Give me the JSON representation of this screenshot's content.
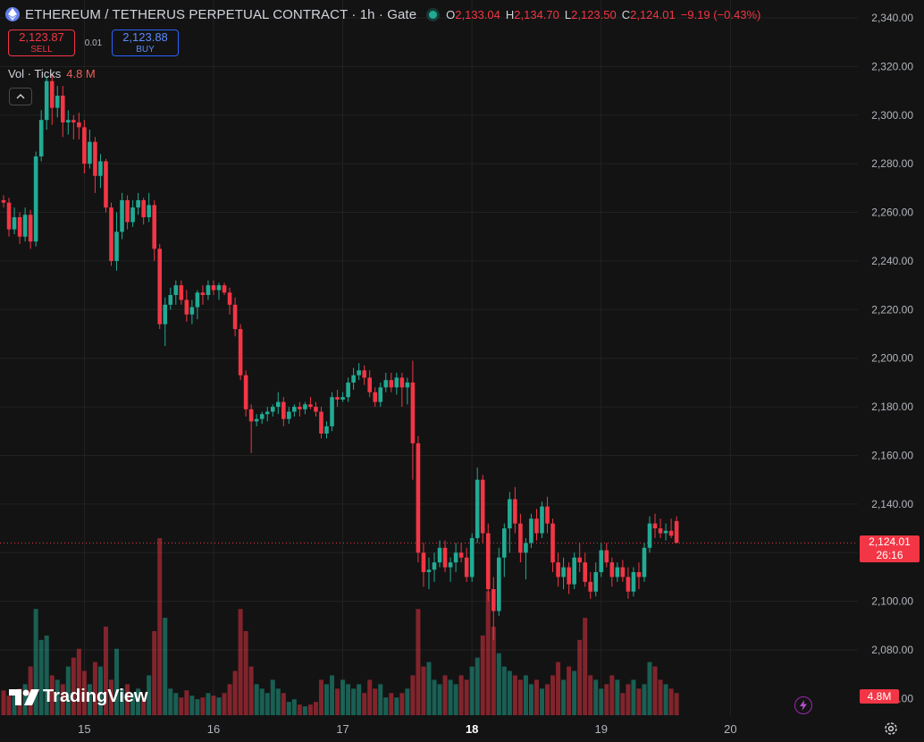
{
  "header": {
    "symbol": "ETHEREUM / TETHERUS PERPETUAL CONTRACT · 1h · Gate",
    "ohlc": [
      {
        "key": "O",
        "value": "2,133.04"
      },
      {
        "key": "H",
        "value": "2,134.70"
      },
      {
        "key": "L",
        "value": "2,123.50"
      },
      {
        "key": "C",
        "value": "2,124.01"
      }
    ],
    "change": "−9.19 (−0.43%)",
    "status_color": "#22ab94"
  },
  "trade": {
    "sell_price": "2,123.87",
    "sell_label": "SELL",
    "spread": "0.01",
    "buy_price": "2,123.88",
    "buy_label": "BUY"
  },
  "volume_legend": {
    "label": "Vol · Ticks",
    "value": "4.8 M"
  },
  "last_price_tag": {
    "price": "2,124.01",
    "countdown": "26:16"
  },
  "volume_tag": "4.8M",
  "branding": {
    "name": "TradingView"
  },
  "icons": {
    "coin": "ethereum-icon",
    "collapse": "chevron-up-icon",
    "bolt": "lightning-icon",
    "settings": "gear-icon"
  },
  "colors": {
    "up": "#22ab94",
    "down": "#f23645",
    "background": "#131313",
    "grid": "#222222"
  },
  "chart_data": {
    "type": "candlestick",
    "interval": "1h",
    "y_ticks": [
      "2,080.00",
      "2,100.00",
      "2,120.00",
      "2,140.00",
      "2,160.00",
      "2,180.00",
      "2,200.00",
      "2,220.00",
      "2,240.00",
      "2,260.00",
      "2,280.00",
      "2,300.00",
      "2,320.00",
      "2,340.00"
    ],
    "y_partial_tick": "2,060.00",
    "ylim": [
      2056,
      2342
    ],
    "x_ticks": [
      {
        "label": "15",
        "bar": 15,
        "bold": false
      },
      {
        "label": "16",
        "bar": 39,
        "bold": false
      },
      {
        "label": "17",
        "bar": 63,
        "bold": false
      },
      {
        "label": "18",
        "bar": 87,
        "bold": true
      },
      {
        "label": "19",
        "bar": 111,
        "bold": false
      },
      {
        "label": "20",
        "bar": 135,
        "bold": false
      }
    ],
    "last_price": 2124.01,
    "candles": [
      [
        2265,
        2267,
        2262,
        2264
      ],
      [
        2264,
        2266,
        2250,
        2253
      ],
      [
        2253,
        2262,
        2251,
        2258
      ],
      [
        2258,
        2260,
        2247,
        2250
      ],
      [
        2250,
        2262,
        2248,
        2259
      ],
      [
        2259,
        2261,
        2245,
        2248
      ],
      [
        2248,
        2285,
        2246,
        2283
      ],
      [
        2283,
        2302,
        2281,
        2298
      ],
      [
        2298,
        2316,
        2294,
        2314
      ],
      [
        2314,
        2317,
        2296,
        2303
      ],
      [
        2303,
        2312,
        2299,
        2308
      ],
      [
        2308,
        2312,
        2291,
        2297
      ],
      [
        2297,
        2302,
        2292,
        2298
      ],
      [
        2298,
        2300,
        2290,
        2297
      ],
      [
        2297,
        2301,
        2290,
        2295
      ],
      [
        2295,
        2298,
        2276,
        2280
      ],
      [
        2280,
        2294,
        2278,
        2289
      ],
      [
        2289,
        2291,
        2268,
        2275
      ],
      [
        2275,
        2284,
        2270,
        2281
      ],
      [
        2281,
        2282,
        2260,
        2262
      ],
      [
        2262,
        2264,
        2238,
        2240
      ],
      [
        2240,
        2260,
        2236,
        2252
      ],
      [
        2252,
        2268,
        2249,
        2265
      ],
      [
        2265,
        2267,
        2253,
        2256
      ],
      [
        2256,
        2265,
        2254,
        2262
      ],
      [
        2262,
        2268,
        2259,
        2265
      ],
      [
        2265,
        2266,
        2255,
        2258
      ],
      [
        2258,
        2268,
        2256,
        2263
      ],
      [
        2263,
        2265,
        2240,
        2245
      ],
      [
        2245,
        2247,
        2212,
        2214
      ],
      [
        2214,
        2225,
        2205,
        2222
      ],
      [
        2222,
        2229,
        2220,
        2226
      ],
      [
        2226,
        2232,
        2222,
        2230
      ],
      [
        2230,
        2232,
        2222,
        2224
      ],
      [
        2224,
        2228,
        2215,
        2218
      ],
      [
        2218,
        2224,
        2214,
        2221
      ],
      [
        2221,
        2228,
        2216,
        2227
      ],
      [
        2227,
        2230,
        2222,
        2226
      ],
      [
        2226,
        2232,
        2224,
        2230
      ],
      [
        2230,
        2232,
        2226,
        2228
      ],
      [
        2228,
        2231,
        2224,
        2230
      ],
      [
        2230,
        2231,
        2226,
        2227
      ],
      [
        2227,
        2229,
        2218,
        2222
      ],
      [
        2222,
        2225,
        2209,
        2212
      ],
      [
        2212,
        2214,
        2191,
        2193
      ],
      [
        2193,
        2195,
        2176,
        2179
      ],
      [
        2179,
        2181,
        2161,
        2174
      ],
      [
        2174,
        2177,
        2172,
        2175
      ],
      [
        2175,
        2178,
        2173,
        2177
      ],
      [
        2177,
        2180,
        2174,
        2178
      ],
      [
        2178,
        2181,
        2176,
        2180
      ],
      [
        2180,
        2186,
        2177,
        2182
      ],
      [
        2182,
        2184,
        2172,
        2175
      ],
      [
        2175,
        2180,
        2173,
        2178
      ],
      [
        2178,
        2181,
        2176,
        2180
      ],
      [
        2180,
        2182,
        2176,
        2179
      ],
      [
        2179,
        2182,
        2177,
        2181
      ],
      [
        2181,
        2184,
        2179,
        2180
      ],
      [
        2180,
        2182,
        2176,
        2178
      ],
      [
        2178,
        2180,
        2167,
        2169
      ],
      [
        2169,
        2174,
        2167,
        2172
      ],
      [
        2172,
        2186,
        2170,
        2184
      ],
      [
        2184,
        2187,
        2180,
        2183
      ],
      [
        2183,
        2186,
        2182,
        2184
      ],
      [
        2184,
        2192,
        2182,
        2190
      ],
      [
        2190,
        2196,
        2187,
        2193
      ],
      [
        2193,
        2198,
        2191,
        2195
      ],
      [
        2195,
        2197,
        2189,
        2192
      ],
      [
        2192,
        2195,
        2184,
        2186
      ],
      [
        2186,
        2188,
        2180,
        2182
      ],
      [
        2182,
        2190,
        2180,
        2188
      ],
      [
        2188,
        2194,
        2186,
        2191
      ],
      [
        2191,
        2194,
        2186,
        2188
      ],
      [
        2188,
        2194,
        2185,
        2192
      ],
      [
        2192,
        2194,
        2180,
        2188
      ],
      [
        2188,
        2192,
        2181,
        2190
      ],
      [
        2190,
        2199,
        2150,
        2165
      ],
      [
        2165,
        2168,
        2116,
        2120
      ],
      [
        2120,
        2124,
        2106,
        2112
      ],
      [
        2112,
        2118,
        2105,
        2113
      ],
      [
        2113,
        2120,
        2108,
        2116
      ],
      [
        2116,
        2125,
        2114,
        2122
      ],
      [
        2122,
        2125,
        2112,
        2114
      ],
      [
        2114,
        2118,
        2108,
        2116
      ],
      [
        2116,
        2124,
        2112,
        2120
      ],
      [
        2120,
        2124,
        2116,
        2118
      ],
      [
        2118,
        2122,
        2108,
        2110
      ],
      [
        2110,
        2128,
        2108,
        2126
      ],
      [
        2126,
        2155,
        2124,
        2150
      ],
      [
        2150,
        2152,
        2124,
        2128
      ],
      [
        2128,
        2132,
        2100,
        2105
      ],
      [
        2105,
        2110,
        2084,
        2096
      ],
      [
        2096,
        2122,
        2094,
        2118
      ],
      [
        2118,
        2132,
        2110,
        2130
      ],
      [
        2130,
        2145,
        2120,
        2142
      ],
      [
        2142,
        2147,
        2128,
        2132
      ],
      [
        2132,
        2136,
        2116,
        2120
      ],
      [
        2120,
        2126,
        2109,
        2124
      ],
      [
        2124,
        2136,
        2122,
        2134
      ],
      [
        2134,
        2138,
        2125,
        2128
      ],
      [
        2128,
        2141,
        2126,
        2139
      ],
      [
        2139,
        2143,
        2128,
        2132
      ],
      [
        2132,
        2134,
        2112,
        2116
      ],
      [
        2116,
        2120,
        2106,
        2110
      ],
      [
        2110,
        2118,
        2105,
        2114
      ],
      [
        2114,
        2116,
        2103,
        2107
      ],
      [
        2107,
        2120,
        2105,
        2118
      ],
      [
        2118,
        2124,
        2112,
        2116
      ],
      [
        2116,
        2120,
        2106,
        2108
      ],
      [
        2108,
        2112,
        2101,
        2104
      ],
      [
        2104,
        2116,
        2102,
        2112
      ],
      [
        2112,
        2124,
        2110,
        2121
      ],
      [
        2121,
        2124,
        2114,
        2116
      ],
      [
        2116,
        2118,
        2106,
        2110
      ],
      [
        2110,
        2116,
        2108,
        2114
      ],
      [
        2114,
        2117,
        2108,
        2110
      ],
      [
        2110,
        2114,
        2101,
        2104
      ],
      [
        2104,
        2114,
        2102,
        2112
      ],
      [
        2112,
        2116,
        2105,
        2110
      ],
      [
        2110,
        2124,
        2108,
        2122
      ],
      [
        2122,
        2135,
        2120,
        2132
      ],
      [
        2132,
        2136,
        2126,
        2130
      ],
      [
        2130,
        2134,
        2126,
        2128
      ],
      [
        2128,
        2132,
        2125,
        2129
      ],
      [
        2129,
        2134,
        2126,
        2127
      ],
      [
        2133,
        2135,
        2124,
        2124
      ]
    ],
    "volumes": [
      0.28,
      0.22,
      0.25,
      0.3,
      0.35,
      0.55,
      1.2,
      0.85,
      0.9,
      0.45,
      0.4,
      0.35,
      0.55,
      0.65,
      0.75,
      0.5,
      0.35,
      0.6,
      0.55,
      1.0,
      0.4,
      0.75,
      0.3,
      0.35,
      0.25,
      0.3,
      0.2,
      0.45,
      0.95,
      2.0,
      1.1,
      0.3,
      0.25,
      0.2,
      0.28,
      0.22,
      0.18,
      0.2,
      0.25,
      0.22,
      0.2,
      0.25,
      0.35,
      0.5,
      1.2,
      0.95,
      0.55,
      0.35,
      0.3,
      0.25,
      0.4,
      0.3,
      0.25,
      0.15,
      0.18,
      0.12,
      0.1,
      0.12,
      0.15,
      0.4,
      0.35,
      0.45,
      0.3,
      0.4,
      0.35,
      0.3,
      0.35,
      0.25,
      0.4,
      0.3,
      0.35,
      0.2,
      0.25,
      0.2,
      0.25,
      0.3,
      0.45,
      1.2,
      0.55,
      0.6,
      0.4,
      0.35,
      0.45,
      0.4,
      0.35,
      0.45,
      0.4,
      0.55,
      0.65,
      0.9,
      1.4,
      1.0,
      0.7,
      0.55,
      0.5,
      0.45,
      0.4,
      0.45,
      0.35,
      0.4,
      0.3,
      0.35,
      0.45,
      0.6,
      0.4,
      0.55,
      0.5,
      0.85,
      1.1,
      0.45,
      0.4,
      0.3,
      0.35,
      0.45,
      0.4,
      0.25,
      0.35,
      0.4,
      0.3,
      0.35,
      0.6,
      0.55,
      0.4,
      0.35,
      0.3,
      0.25
    ]
  }
}
